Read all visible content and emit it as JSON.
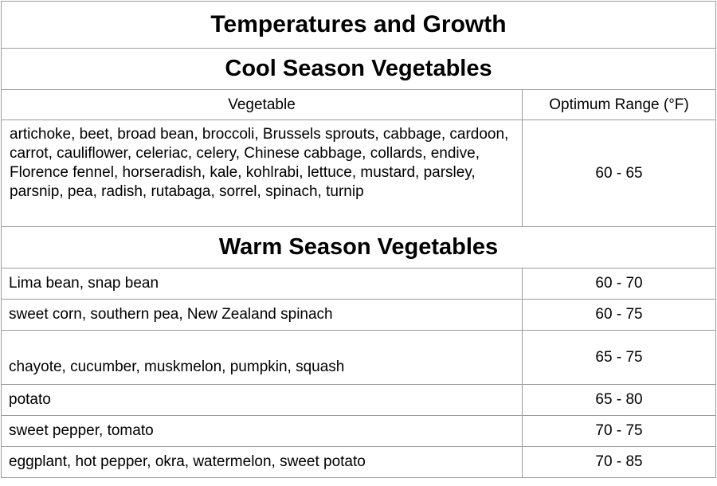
{
  "title": "Temperatures and Growth",
  "columns": {
    "vegetable": "Vegetable",
    "range": "Optimum Range (°F)"
  },
  "sections": [
    {
      "heading": "Cool Season Vegetables",
      "rows": [
        {
          "vegetables": "artichoke, beet, broad bean, broccoli, Brussels sprouts, cabbage, cardoon, carrot, cauliflower, celeriac, celery, Chinese cabbage, collards, endive, Florence fennel, horseradish, kale, kohlrabi, lettuce, mustard, parsley, parsnip, pea, radish, rutabaga, sorrel, spinach, turnip",
          "range": "60 - 65"
        }
      ]
    },
    {
      "heading": "Warm Season Vegetables",
      "rows": [
        {
          "vegetables": "Lima bean, snap bean",
          "range": "60 - 70"
        },
        {
          "vegetables": "sweet corn, southern pea, New Zealand spinach",
          "range": "60 - 75"
        },
        {
          "vegetables": "chayote, cucumber, muskmelon, pumpkin, squash",
          "range": "65 - 75"
        },
        {
          "vegetables": "potato",
          "range": "65 - 80"
        },
        {
          "vegetables": "sweet pepper, tomato",
          "range": "70 - 75"
        },
        {
          "vegetables": "eggplant, hot pepper, okra, watermelon, sweet potato",
          "range": "70 - 85"
        }
      ]
    }
  ],
  "colors": {
    "border": "#9b9b9b",
    "text": "#000000",
    "background": "#ffffff"
  }
}
